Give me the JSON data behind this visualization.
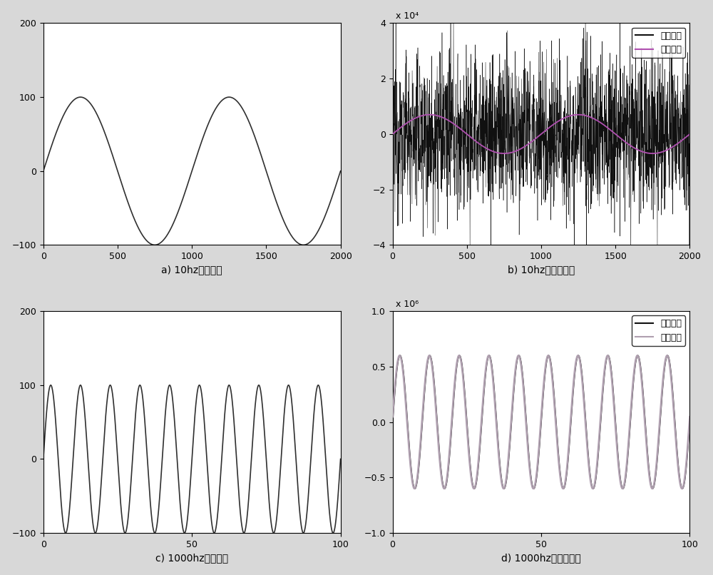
{
  "fig_width": 10.0,
  "fig_height": 8.06,
  "dpi": 100,
  "background_color": "#d8d8d8",
  "subplot_bg": "#ffffff",
  "subplots": [
    {
      "id": "a",
      "title": "a) 10hz原始信号",
      "xlim": [
        0,
        2000
      ],
      "ylim": [
        -100,
        200
      ],
      "xticks": [
        0,
        500,
        1000,
        1500,
        2000
      ],
      "yticks": [
        -100,
        0,
        100,
        200
      ],
      "n_samples": 2001,
      "freq_cycles": 2,
      "amplitude": 100,
      "line_color": "#303030",
      "line_width": 1.2,
      "has_legend": false
    },
    {
      "id": "b",
      "title": "b) 10hz时结果对比",
      "xlim": [
        0,
        2000
      ],
      "ylim": [
        -4,
        4
      ],
      "xticks": [
        0,
        500,
        1000,
        1500,
        2000
      ],
      "yticks": [
        -4,
        -2,
        0,
        2,
        4
      ],
      "scale_label": "x 10⁴",
      "noise_amplitude": 1.4,
      "ideal_amplitude": 0.7,
      "freq_cycles": 2,
      "n_samples": 2001,
      "computed_color": "#101010",
      "ideal_color": "#b050b0",
      "computed_lw": 0.35,
      "ideal_lw": 1.3,
      "has_legend": true,
      "legend_labels": [
        "计算结果",
        "理想结果"
      ],
      "legend_colors": [
        "#101010",
        "#b050b0"
      ]
    },
    {
      "id": "c",
      "title": "c) 1000hz原始信号",
      "xlim": [
        0,
        100
      ],
      "ylim": [
        -100,
        200
      ],
      "xticks": [
        0,
        50,
        100
      ],
      "yticks": [
        -100,
        0,
        100,
        200
      ],
      "n_samples": 1001,
      "freq_cycles": 10,
      "amplitude": 100,
      "line_color": "#303030",
      "line_width": 1.2,
      "has_legend": false
    },
    {
      "id": "d",
      "title": "d) 1000hz时结果对比",
      "xlim": [
        0,
        100
      ],
      "ylim": [
        -1,
        1
      ],
      "xticks": [
        0,
        50,
        100
      ],
      "yticks": [
        -1,
        -0.5,
        0,
        0.5,
        1
      ],
      "scale_label": "x 10⁶",
      "signal_amplitude": 0.6,
      "freq_cycles": 10,
      "n_samples": 1001,
      "computed_color": "#101010",
      "ideal_color": "#b0a0b0",
      "computed_lw": 1.3,
      "ideal_lw": 1.8,
      "has_legend": true,
      "legend_labels": [
        "计算结果",
        "理想结果"
      ],
      "legend_colors": [
        "#101010",
        "#b0a0b0"
      ]
    }
  ]
}
